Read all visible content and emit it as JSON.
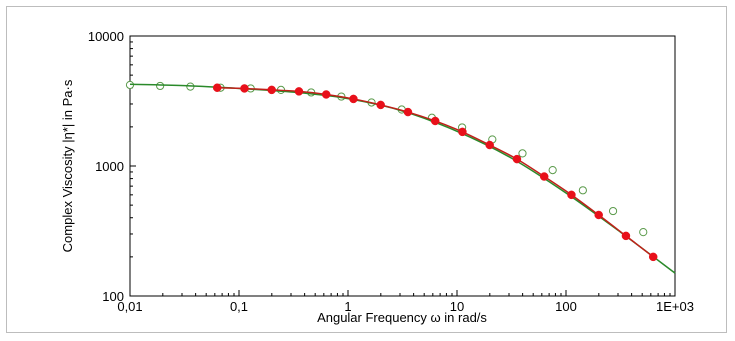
{
  "chart_data": {
    "type": "scatter",
    "title": "",
    "xlabel": "Angular Frequency ω in rad/s",
    "ylabel": "Complex Viscosity |η*| in Pa·s",
    "xscale": "log",
    "yscale": "log",
    "xlim": [
      0.01,
      1000
    ],
    "ylim": [
      100,
      10000
    ],
    "grid": false,
    "legend": "none",
    "x_ticks": [
      {
        "value": 0.01,
        "label": "0,01"
      },
      {
        "value": 0.1,
        "label": "0,1"
      },
      {
        "value": 1,
        "label": "1"
      },
      {
        "value": 10,
        "label": "10"
      },
      {
        "value": 100,
        "label": "100"
      },
      {
        "value": 1000,
        "label": "1E+03"
      }
    ],
    "y_ticks": [
      {
        "value": 100,
        "label": "100"
      },
      {
        "value": 1000,
        "label": "1000"
      },
      {
        "value": 10000,
        "label": "10000"
      }
    ],
    "series": [
      {
        "kind": "scatter-open",
        "color": "#5a9a4a",
        "x": [
          0.01,
          0.0189,
          0.0358,
          0.0677,
          0.128,
          0.2427,
          0.4591,
          0.8687,
          1.644,
          3.11,
          5.886,
          11.14,
          21.08,
          39.88,
          75.46,
          142.8,
          270.2,
          511.3
        ],
        "y": [
          4200,
          4130,
          4080,
          4000,
          3950,
          3850,
          3680,
          3420,
          3080,
          2720,
          2350,
          1980,
          1600,
          1250,
          930,
          650,
          450,
          310
        ]
      },
      {
        "kind": "scatter-filled",
        "color": "#e8101a",
        "x": [
          0.0631,
          0.1122,
          0.1995,
          0.3548,
          0.631,
          1.122,
          1.995,
          3.548,
          6.31,
          11.22,
          19.95,
          35.48,
          63.1,
          112.2,
          199.5,
          354.8,
          631
        ],
        "y": [
          4000,
          3950,
          3850,
          3750,
          3550,
          3280,
          2950,
          2600,
          2220,
          1830,
          1450,
          1130,
          830,
          600,
          420,
          290,
          200
        ]
      },
      {
        "kind": "line",
        "color": "#2a8a2a",
        "x": [
          0.01,
          0.0316,
          0.1,
          0.316,
          1,
          3.16,
          10,
          31.6,
          100,
          316,
          1000
        ],
        "y": [
          4250,
          4150,
          3950,
          3700,
          3300,
          2650,
          1850,
          1150,
          620,
          310,
          150
        ]
      },
      {
        "kind": "line",
        "color": "#c0201a",
        "x": [
          0.0631,
          0.1122,
          0.1995,
          0.3548,
          0.631,
          1.122,
          1.995,
          3.548,
          6.31,
          11.22,
          19.95,
          35.48,
          63.1,
          112.2,
          199.5,
          354.8,
          631
        ],
        "y": [
          4000,
          3950,
          3850,
          3750,
          3550,
          3280,
          2950,
          2600,
          2220,
          1830,
          1450,
          1130,
          830,
          600,
          420,
          290,
          200
        ]
      }
    ]
  }
}
